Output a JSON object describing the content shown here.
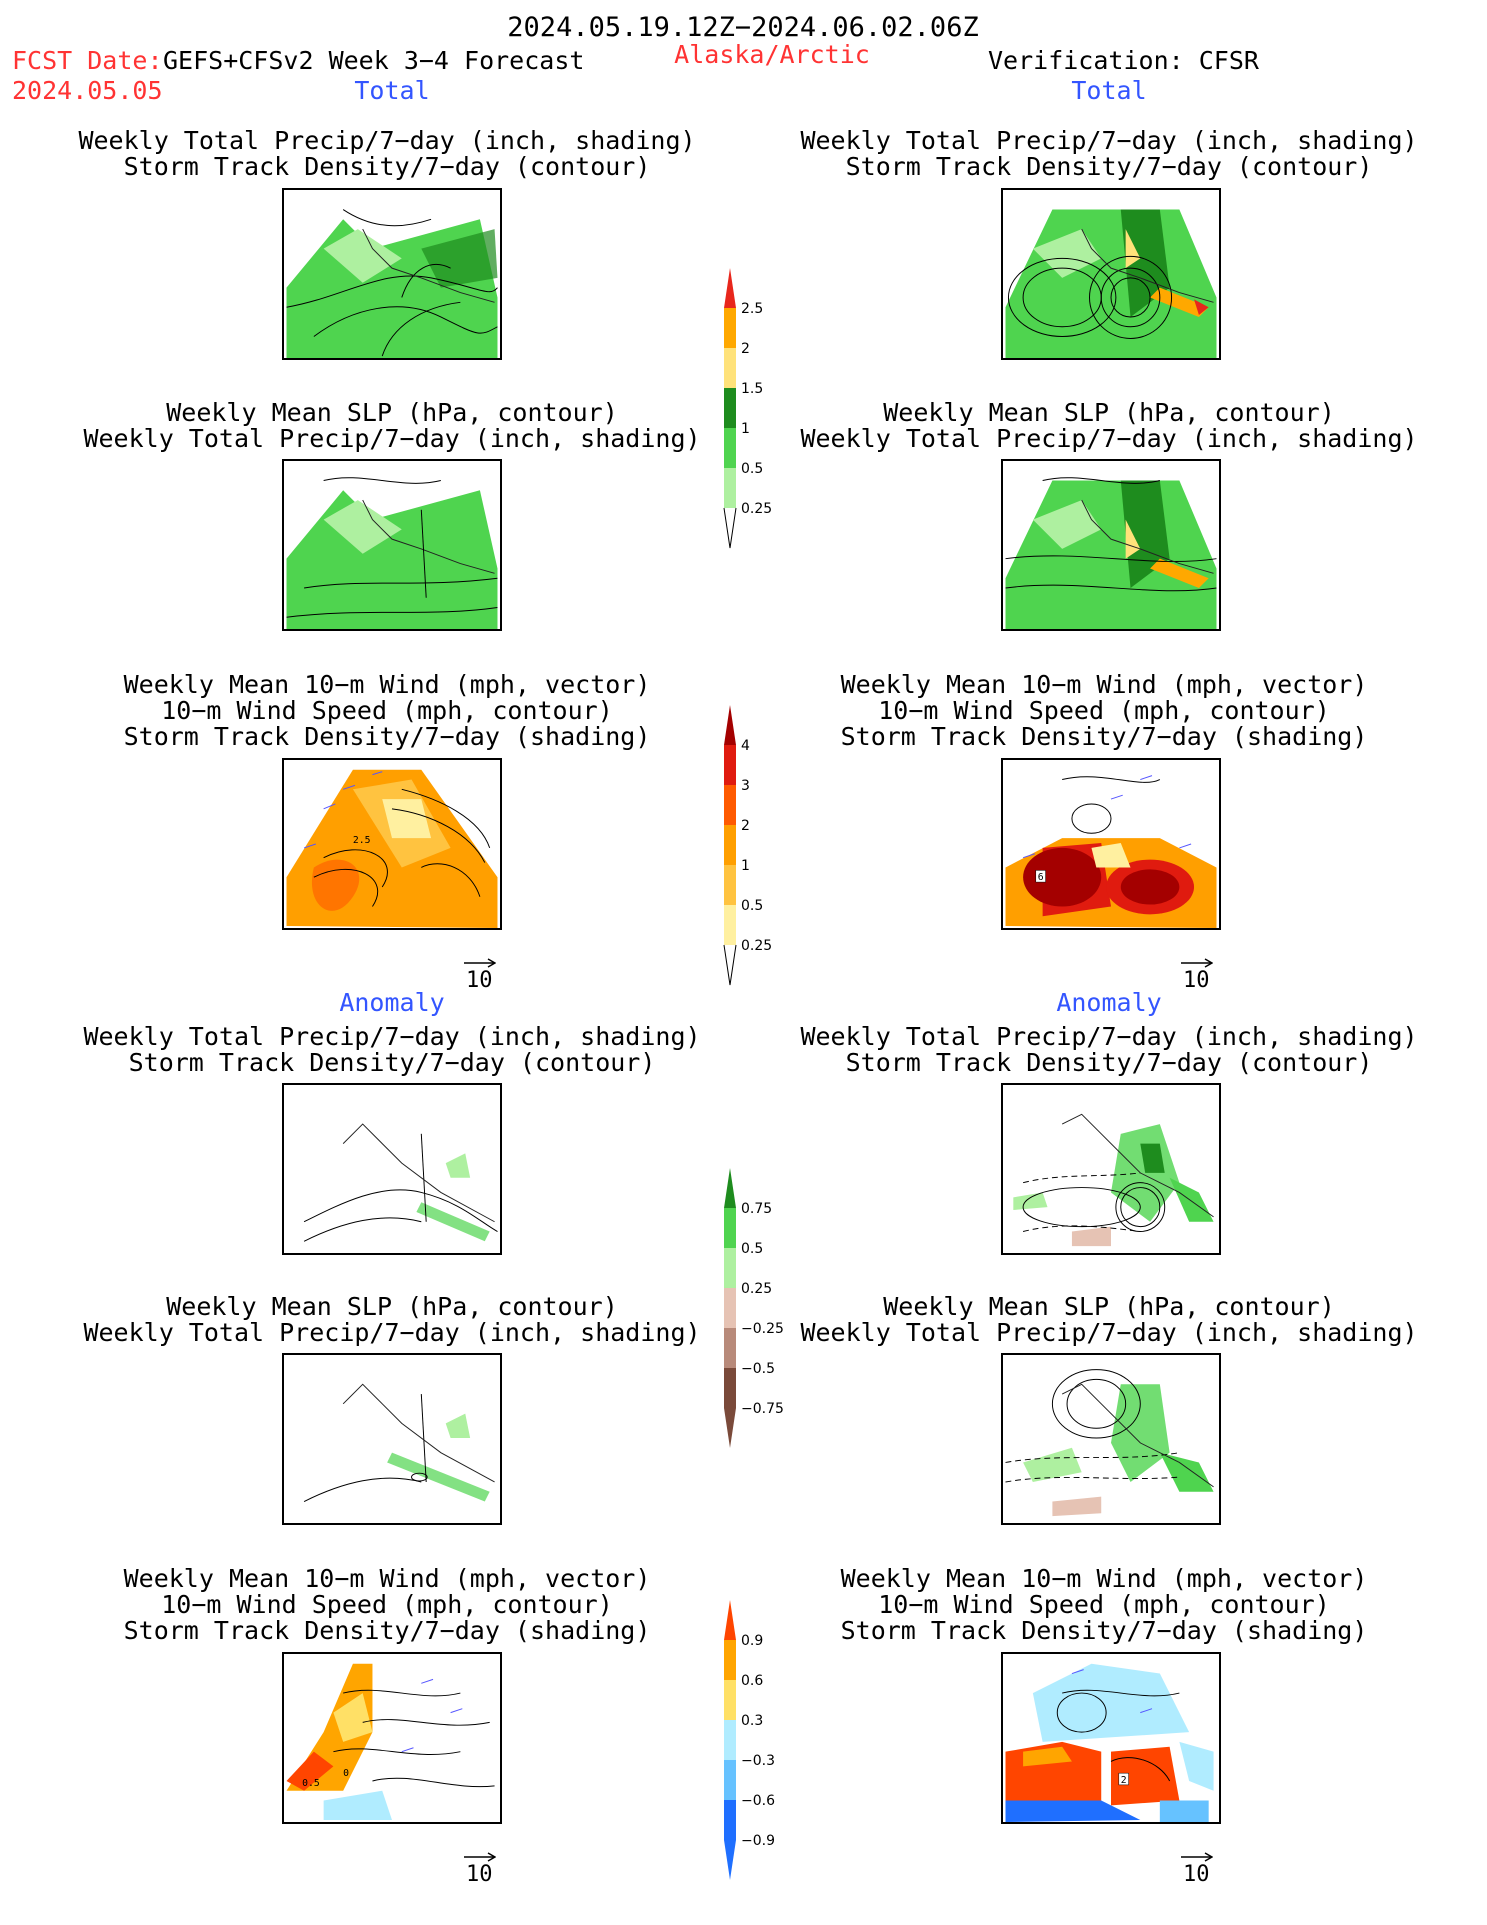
{
  "header": {
    "date_range": "2024.05.19.12Z−2024.06.02.06Z",
    "fcst_label": "FCST Date:",
    "model": "GEFS+CFSv2 Week 3−4 Forecast",
    "fcst_date": "2024.05.05",
    "region": "Alaska/Arctic",
    "verification": "Verification: CFSR"
  },
  "sections": {
    "total_left": "Total",
    "total_right": "Total",
    "anomaly_left": "Anomaly",
    "anomaly_right": "Anomaly"
  },
  "panel_titles": {
    "precip_storm": [
      "Weekly Total Precip/7−day (inch, shading)",
      "Storm Track Density/7−day (contour)"
    ],
    "slp_precip": [
      "Weekly Mean SLP (hPa, contour)",
      "Weekly Total Precip/7−day (inch, shading)"
    ],
    "wind_storm": [
      "Weekly Mean 10−m Wind (mph, vector)",
      "10−m Wind Speed (mph, contour)",
      "Storm Track Density/7−day (shading)"
    ]
  },
  "vector_reference": "10",
  "colorbars": {
    "total_precip": {
      "labels": [
        "2.5",
        "2",
        "1.5",
        "1",
        "0.5",
        "0.25"
      ],
      "colors": [
        "#e8261c",
        "#ffa800",
        "#ffe27a",
        "#1e8c1e",
        "#4fd44f",
        "#aef0a0"
      ]
    },
    "total_storm": {
      "labels": [
        "4",
        "3",
        "2",
        "1",
        "0.5",
        "0.25"
      ],
      "colors": [
        "#a40000",
        "#e01b0f",
        "#ff5a00",
        "#ff9f00",
        "#ffc340",
        "#fff0a0"
      ]
    },
    "anom_precip": {
      "labels": [
        "0.75",
        "0.5",
        "0.25",
        "−0.25",
        "−0.5",
        "−0.75"
      ],
      "colors": [
        "#1e8c1e",
        "#4fd44f",
        "#aef0a0",
        "#e6c3b4",
        "#b88a7a",
        "#7a4a3a"
      ]
    },
    "anom_storm": {
      "labels": [
        "0.9",
        "0.6",
        "0.3",
        "−0.3",
        "−0.6",
        "−0.9"
      ],
      "colors": [
        "#ff4500",
        "#ffa500",
        "#ffe066",
        "#b0ecff",
        "#66c2ff",
        "#1f6fff"
      ]
    }
  },
  "map_labels": {
    "total_wind_left": "2.5",
    "total_wind_right": "6",
    "anom_wind_left_a": "0.5",
    "anom_wind_left_b": "0",
    "anom_wind_right": "2"
  }
}
